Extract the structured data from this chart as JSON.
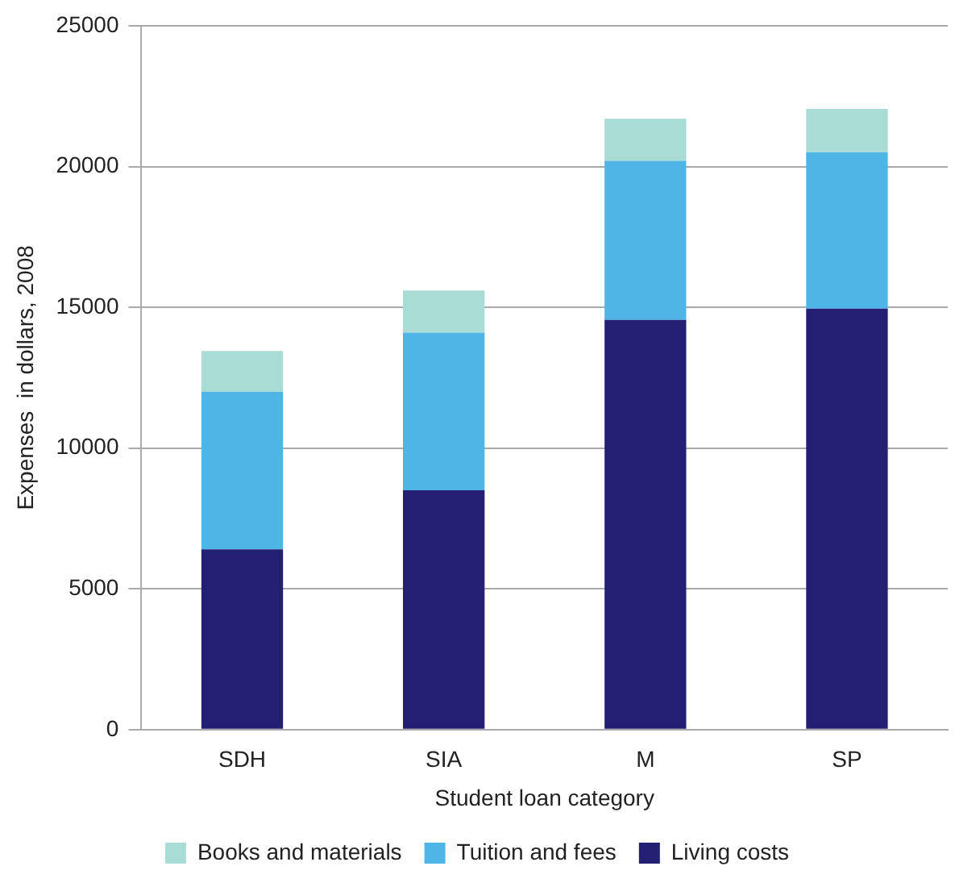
{
  "chart_data": {
    "type": "bar",
    "stacked": true,
    "xlabel": "Student loan category",
    "ylabel": "Expenses  in dollars, 2008",
    "categories": [
      "SDH",
      "SIA",
      "M",
      "SP"
    ],
    "series": [
      {
        "name": "Living costs",
        "color": "#231f73",
        "values": [
          6400,
          8500,
          14550,
          14950
        ]
      },
      {
        "name": "Tuition and fees",
        "color": "#4fb5e6",
        "values": [
          5600,
          5600,
          5650,
          5550
        ]
      },
      {
        "name": "Books and materials",
        "color": "#a8dcd4",
        "values": [
          1450,
          1500,
          1500,
          1550
        ]
      }
    ],
    "ylim": [
      0,
      25000
    ],
    "yticks": [
      0,
      5000,
      10000,
      15000,
      20000,
      25000
    ],
    "grid": "y",
    "legend": "bottom"
  }
}
